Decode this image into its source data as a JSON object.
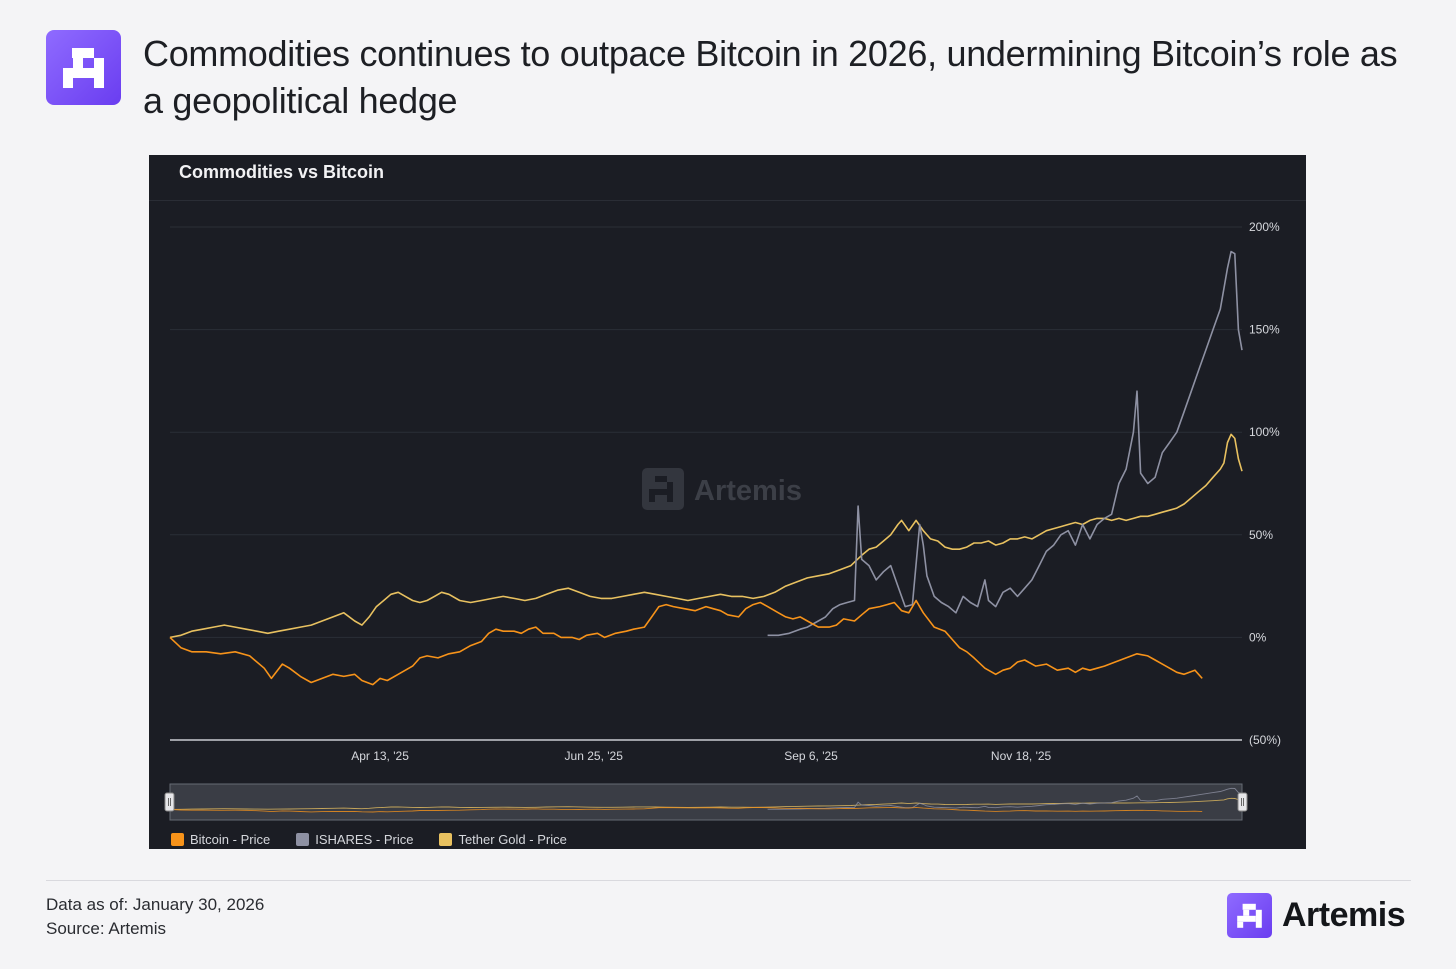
{
  "header": {
    "headline": "Commodities continues to outpace Bitcoin in 2026, undermining Bitcoin’s role as a geopolitical hedge",
    "logo_icon": "artemis-logo-icon"
  },
  "chart_data": {
    "type": "line",
    "title": "Commodities vs Bitcoin",
    "watermark": "Artemis",
    "xlabel": "",
    "ylabel": "",
    "x_ticks": [
      "Apr 13, '25",
      "Jun 25, '25",
      "Sep 6, '25",
      "Nov 18, '25"
    ],
    "y_ticks": [
      "200%",
      "150%",
      "100%",
      "50%",
      "0%",
      "(50%)"
    ],
    "ylim": [
      -50,
      200
    ],
    "legend_position": "bottom-left",
    "grid": true,
    "series": [
      {
        "name": "Bitcoin - Price",
        "color": "#f7931a",
        "points": [
          [
            0,
            0
          ],
          [
            3,
            -5
          ],
          [
            6,
            -7
          ],
          [
            10,
            -7
          ],
          [
            14,
            -8
          ],
          [
            18,
            -7
          ],
          [
            22,
            -9
          ],
          [
            26,
            -15
          ],
          [
            28,
            -20
          ],
          [
            31,
            -13
          ],
          [
            33,
            -15
          ],
          [
            36,
            -19
          ],
          [
            39,
            -22
          ],
          [
            42,
            -20
          ],
          [
            45,
            -18
          ],
          [
            48,
            -19
          ],
          [
            51,
            -18
          ],
          [
            53,
            -21
          ],
          [
            56,
            -23
          ],
          [
            58,
            -20
          ],
          [
            60,
            -21
          ],
          [
            63,
            -18
          ],
          [
            65,
            -16
          ],
          [
            67,
            -14
          ],
          [
            69,
            -10
          ],
          [
            71,
            -9
          ],
          [
            74,
            -10
          ],
          [
            77,
            -8
          ],
          [
            80,
            -7
          ],
          [
            83,
            -4
          ],
          [
            86,
            -2
          ],
          [
            88,
            2
          ],
          [
            90,
            4
          ],
          [
            92,
            3
          ],
          [
            95,
            3
          ],
          [
            97,
            2
          ],
          [
            99,
            4
          ],
          [
            101,
            5
          ],
          [
            103,
            2
          ],
          [
            106,
            2
          ],
          [
            108,
            0
          ],
          [
            111,
            0
          ],
          [
            113,
            -1
          ],
          [
            115,
            1
          ],
          [
            118,
            2
          ],
          [
            120,
            0
          ],
          [
            123,
            2
          ],
          [
            126,
            3
          ],
          [
            128,
            4
          ],
          [
            131,
            5
          ],
          [
            133,
            10
          ],
          [
            135,
            15
          ],
          [
            137,
            16
          ],
          [
            139,
            15
          ],
          [
            142,
            14
          ],
          [
            145,
            13
          ],
          [
            148,
            15
          ],
          [
            150,
            14
          ],
          [
            152,
            13
          ],
          [
            154,
            11
          ],
          [
            157,
            10
          ],
          [
            159,
            14
          ],
          [
            161,
            16
          ],
          [
            163,
            17
          ],
          [
            165,
            15
          ],
          [
            168,
            12
          ],
          [
            170,
            10
          ],
          [
            172,
            9
          ],
          [
            174,
            10
          ],
          [
            176,
            8
          ],
          [
            179,
            5
          ],
          [
            182,
            5
          ],
          [
            184,
            6
          ],
          [
            186,
            9
          ],
          [
            189,
            8
          ],
          [
            191,
            11
          ],
          [
            193,
            14
          ],
          [
            196,
            15
          ],
          [
            198,
            16
          ],
          [
            200,
            17
          ],
          [
            202,
            13
          ],
          [
            204,
            12
          ],
          [
            206,
            18
          ],
          [
            208,
            12
          ],
          [
            211,
            5
          ],
          [
            214,
            3
          ],
          [
            216,
            -1
          ],
          [
            218,
            -5
          ],
          [
            220,
            -7
          ],
          [
            222,
            -10
          ],
          [
            225,
            -15
          ],
          [
            228,
            -18
          ],
          [
            230,
            -16
          ],
          [
            232,
            -15
          ],
          [
            234,
            -12
          ],
          [
            236,
            -11
          ],
          [
            239,
            -14
          ],
          [
            242,
            -13
          ],
          [
            245,
            -16
          ],
          [
            248,
            -15
          ],
          [
            250,
            -17
          ],
          [
            252,
            -15
          ],
          [
            254,
            -16
          ],
          [
            256,
            -15
          ],
          [
            258,
            -14
          ],
          [
            261,
            -12
          ],
          [
            264,
            -10
          ],
          [
            267,
            -8
          ],
          [
            270,
            -9
          ],
          [
            272,
            -11
          ],
          [
            274,
            -13
          ],
          [
            276,
            -15
          ],
          [
            278,
            -17
          ],
          [
            280,
            -18
          ],
          [
            283,
            -16
          ],
          [
            285,
            -20
          ]
        ]
      },
      {
        "name": "ISHARES - Price",
        "color": "#8e91a3",
        "points": [
          [
            165,
            1
          ],
          [
            168,
            1
          ],
          [
            171,
            2
          ],
          [
            174,
            4
          ],
          [
            176,
            5
          ],
          [
            179,
            8
          ],
          [
            181,
            10
          ],
          [
            183,
            14
          ],
          [
            185,
            16
          ],
          [
            187,
            17
          ],
          [
            189,
            18
          ],
          [
            190,
            64
          ],
          [
            191,
            38
          ],
          [
            193,
            35
          ],
          [
            195,
            28
          ],
          [
            197,
            32
          ],
          [
            199,
            35
          ],
          [
            201,
            25
          ],
          [
            203,
            15
          ],
          [
            205,
            16
          ],
          [
            207,
            55
          ],
          [
            208,
            45
          ],
          [
            209,
            30
          ],
          [
            211,
            20
          ],
          [
            213,
            17
          ],
          [
            215,
            15
          ],
          [
            217,
            12
          ],
          [
            219,
            20
          ],
          [
            221,
            17
          ],
          [
            223,
            15
          ],
          [
            225,
            28
          ],
          [
            226,
            18
          ],
          [
            228,
            15
          ],
          [
            230,
            22
          ],
          [
            232,
            24
          ],
          [
            234,
            20
          ],
          [
            236,
            24
          ],
          [
            238,
            28
          ],
          [
            240,
            35
          ],
          [
            242,
            42
          ],
          [
            244,
            45
          ],
          [
            246,
            50
          ],
          [
            248,
            52
          ],
          [
            250,
            45
          ],
          [
            252,
            55
          ],
          [
            254,
            48
          ],
          [
            256,
            55
          ],
          [
            258,
            58
          ],
          [
            260,
            60
          ],
          [
            262,
            75
          ],
          [
            264,
            82
          ],
          [
            266,
            100
          ],
          [
            267,
            120
          ],
          [
            268,
            80
          ],
          [
            270,
            75
          ],
          [
            272,
            78
          ],
          [
            274,
            90
          ],
          [
            276,
            95
          ],
          [
            278,
            100
          ],
          [
            280,
            110
          ],
          [
            282,
            120
          ],
          [
            284,
            130
          ],
          [
            286,
            140
          ],
          [
            288,
            150
          ],
          [
            290,
            160
          ],
          [
            291,
            170
          ],
          [
            292,
            180
          ],
          [
            293,
            188
          ],
          [
            294,
            187
          ],
          [
            295,
            150
          ],
          [
            296,
            140
          ]
        ]
      },
      {
        "name": "Tether Gold - Price",
        "color": "#e8c160",
        "points": [
          [
            0,
            0
          ],
          [
            3,
            1
          ],
          [
            6,
            3
          ],
          [
            9,
            4
          ],
          [
            12,
            5
          ],
          [
            15,
            6
          ],
          [
            18,
            5
          ],
          [
            21,
            4
          ],
          [
            24,
            3
          ],
          [
            27,
            2
          ],
          [
            30,
            3
          ],
          [
            33,
            4
          ],
          [
            36,
            5
          ],
          [
            39,
            6
          ],
          [
            42,
            8
          ],
          [
            45,
            10
          ],
          [
            48,
            12
          ],
          [
            51,
            8
          ],
          [
            53,
            6
          ],
          [
            55,
            10
          ],
          [
            57,
            15
          ],
          [
            59,
            18
          ],
          [
            61,
            21
          ],
          [
            63,
            22
          ],
          [
            65,
            20
          ],
          [
            67,
            18
          ],
          [
            69,
            17
          ],
          [
            71,
            18
          ],
          [
            73,
            20
          ],
          [
            75,
            22
          ],
          [
            77,
            21
          ],
          [
            80,
            18
          ],
          [
            83,
            17
          ],
          [
            86,
            18
          ],
          [
            89,
            19
          ],
          [
            92,
            20
          ],
          [
            95,
            19
          ],
          [
            98,
            18
          ],
          [
            101,
            19
          ],
          [
            104,
            21
          ],
          [
            107,
            23
          ],
          [
            110,
            24
          ],
          [
            113,
            22
          ],
          [
            116,
            20
          ],
          [
            119,
            19
          ],
          [
            122,
            19
          ],
          [
            125,
            20
          ],
          [
            128,
            21
          ],
          [
            131,
            22
          ],
          [
            134,
            21
          ],
          [
            137,
            20
          ],
          [
            140,
            19
          ],
          [
            143,
            18
          ],
          [
            146,
            19
          ],
          [
            149,
            20
          ],
          [
            152,
            21
          ],
          [
            155,
            20
          ],
          [
            158,
            20
          ],
          [
            161,
            19
          ],
          [
            164,
            20
          ],
          [
            167,
            22
          ],
          [
            170,
            25
          ],
          [
            173,
            27
          ],
          [
            176,
            29
          ],
          [
            179,
            30
          ],
          [
            182,
            31
          ],
          [
            185,
            33
          ],
          [
            188,
            35
          ],
          [
            191,
            40
          ],
          [
            193,
            43
          ],
          [
            195,
            44
          ],
          [
            197,
            47
          ],
          [
            199,
            50
          ],
          [
            201,
            55
          ],
          [
            202,
            57
          ],
          [
            204,
            52
          ],
          [
            206,
            57
          ],
          [
            208,
            52
          ],
          [
            210,
            48
          ],
          [
            212,
            47
          ],
          [
            214,
            44
          ],
          [
            216,
            43
          ],
          [
            218,
            43
          ],
          [
            220,
            44
          ],
          [
            222,
            46
          ],
          [
            224,
            46
          ],
          [
            226,
            47
          ],
          [
            228,
            45
          ],
          [
            230,
            46
          ],
          [
            232,
            48
          ],
          [
            234,
            48
          ],
          [
            236,
            49
          ],
          [
            238,
            48
          ],
          [
            240,
            50
          ],
          [
            242,
            52
          ],
          [
            244,
            53
          ],
          [
            246,
            54
          ],
          [
            248,
            55
          ],
          [
            250,
            56
          ],
          [
            252,
            55
          ],
          [
            254,
            57
          ],
          [
            256,
            58
          ],
          [
            258,
            58
          ],
          [
            260,
            57
          ],
          [
            262,
            58
          ],
          [
            264,
            57
          ],
          [
            266,
            58
          ],
          [
            268,
            59
          ],
          [
            270,
            59
          ],
          [
            272,
            60
          ],
          [
            274,
            61
          ],
          [
            276,
            62
          ],
          [
            278,
            63
          ],
          [
            280,
            65
          ],
          [
            282,
            68
          ],
          [
            284,
            71
          ],
          [
            286,
            74
          ],
          [
            288,
            78
          ],
          [
            290,
            82
          ],
          [
            291,
            85
          ],
          [
            292,
            95
          ],
          [
            293,
            99
          ],
          [
            294,
            97
          ],
          [
            295,
            87
          ],
          [
            296,
            81
          ]
        ]
      }
    ]
  },
  "legend": [
    {
      "label": "Bitcoin - Price",
      "color": "#f7931a"
    },
    {
      "label": "ISHARES - Price",
      "color": "#8e91a3"
    },
    {
      "label": "Tether Gold - Price",
      "color": "#e8c160"
    }
  ],
  "footer": {
    "data_as_of": "Data as of:  January 30, 2026",
    "source": "Source: Artemis",
    "brand_name": "Artemis"
  }
}
